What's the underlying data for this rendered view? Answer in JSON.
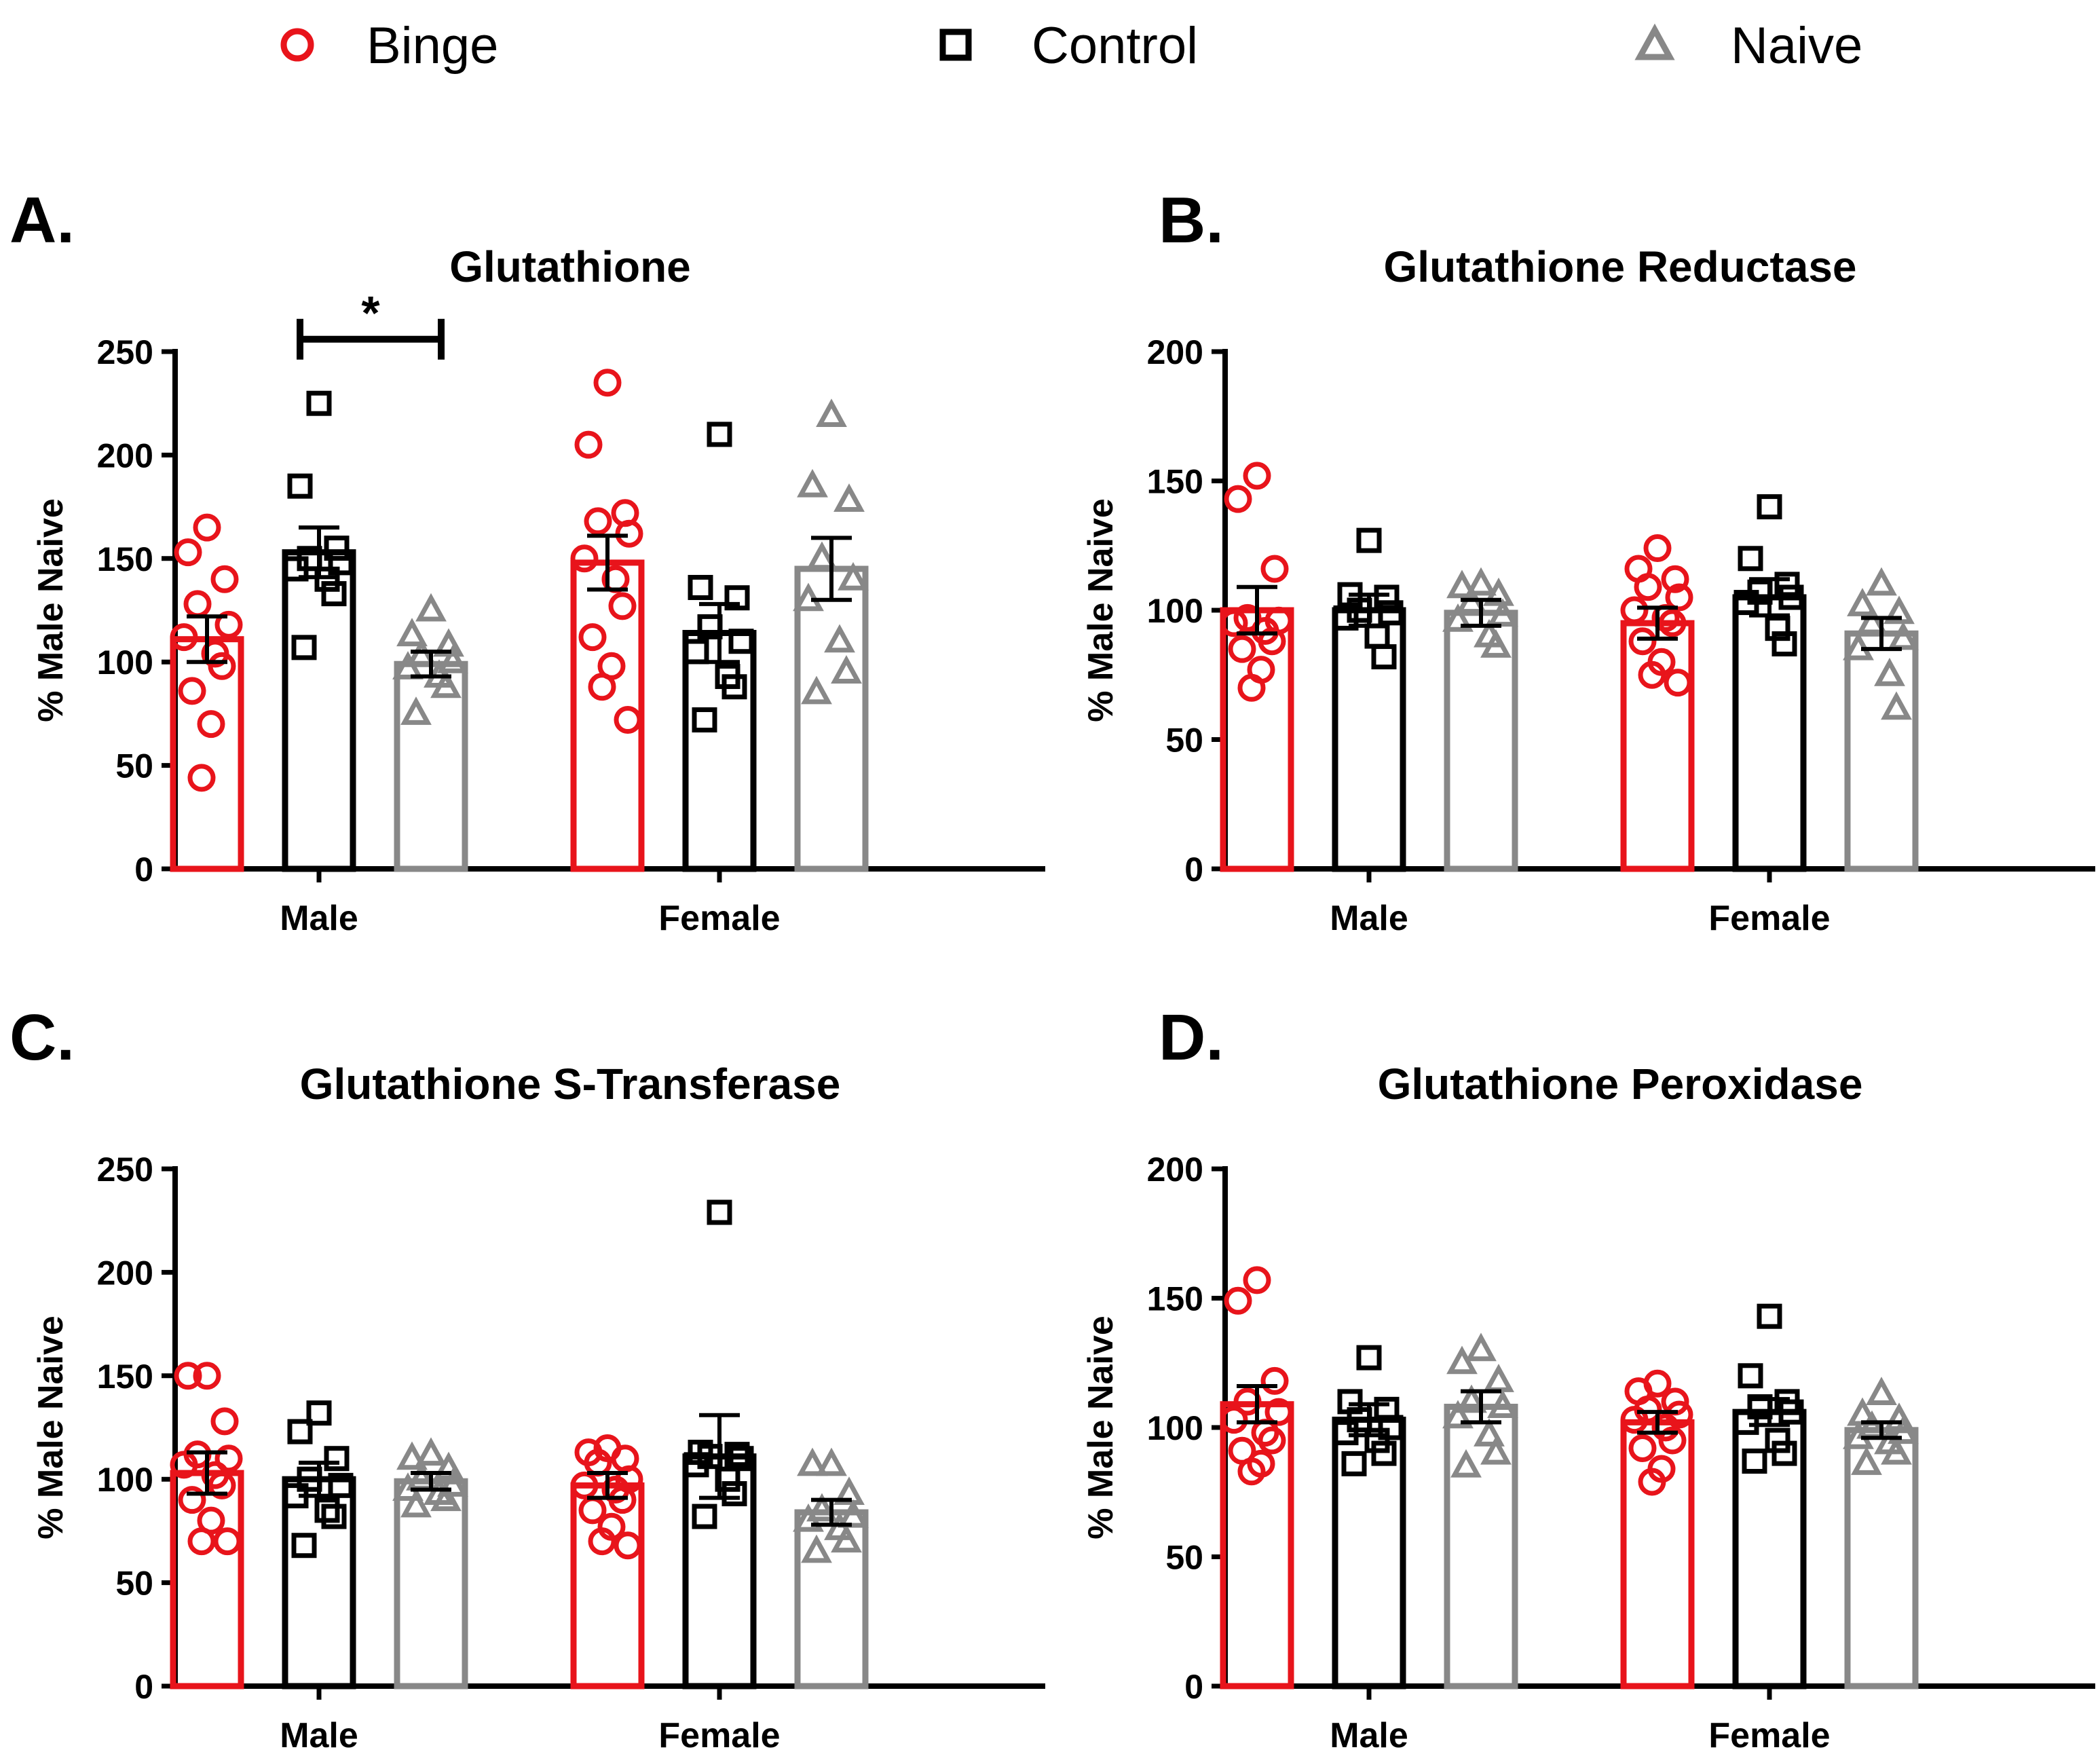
{
  "legend": {
    "items": [
      {
        "label": "Binge",
        "marker": "circle",
        "color": "#e8141b"
      },
      {
        "label": "Control",
        "marker": "square",
        "color": "#000000"
      },
      {
        "label": "Naive",
        "marker": "triangle",
        "color": "#888888"
      }
    ]
  },
  "colors": {
    "binge": "#e8141b",
    "control": "#000000",
    "naive": "#888888",
    "axis": "#000000"
  },
  "chart_data": [
    {
      "panel_label": "A.",
      "type": "bar",
      "title": "Glutathione",
      "ylabel": "% Male Naive",
      "xlabel": "",
      "categories": [
        "Male",
        "Female"
      ],
      "ylim": [
        0,
        250
      ],
      "yticks": [
        0,
        50,
        100,
        150,
        200,
        250
      ],
      "series": [
        {
          "name": "Binge",
          "marker": "circle",
          "means": [
            111,
            148
          ],
          "sem": [
            11,
            13
          ],
          "points": [
            [
              165,
              153,
              140,
              128,
              118,
              112,
              104,
              98,
              86,
              70,
              44
            ],
            [
              235,
              205,
              172,
              168,
              162,
              150,
              140,
              127,
              112,
              98,
              88,
              72
            ]
          ]
        },
        {
          "name": "Control",
          "marker": "square",
          "means": [
            153,
            114
          ],
          "sem": [
            12,
            14
          ],
          "points": [
            [
              225,
              185,
              155,
              150,
              148,
              145,
              140,
              133,
              107
            ],
            [
              210,
              136,
              131,
              117,
              110,
              105,
              93,
              88,
              72
            ]
          ]
        },
        {
          "name": "Naive",
          "marker": "triangle",
          "means": [
            99,
            145
          ],
          "sem": [
            6,
            15
          ],
          "points": [
            [
              125,
              113,
              108,
              103,
              100,
              97,
              93,
              88,
              75
            ],
            [
              219,
              185,
              178,
              150,
              140,
              130,
              110,
              95,
              85
            ]
          ]
        }
      ],
      "significance": [
        {
          "label": "*",
          "between": [
            "Male/Control",
            "Male/Naive"
          ],
          "level": 255
        }
      ]
    },
    {
      "panel_label": "B.",
      "type": "bar",
      "title": "Glutathione Reductase",
      "ylabel": "% Male Naive",
      "xlabel": "",
      "categories": [
        "Male",
        "Female"
      ],
      "ylim": [
        0,
        200
      ],
      "yticks": [
        0,
        50,
        100,
        150,
        200
      ],
      "series": [
        {
          "name": "Binge",
          "marker": "circle",
          "means": [
            100,
            95
          ],
          "sem": [
            9,
            6
          ],
          "points": [
            [
              152,
              143,
              116,
              97,
              96,
              95,
              92,
              88,
              85,
              77,
              70
            ],
            [
              124,
              116,
              112,
              109,
              105,
              100,
              97,
              95,
              88,
              80,
              75,
              72
            ]
          ]
        },
        {
          "name": "Control",
          "marker": "square",
          "means": [
            100,
            105
          ],
          "sem": [
            6,
            7
          ],
          "points": [
            [
              127,
              106,
              105,
              100,
              99,
              97,
              90,
              82
            ],
            [
              140,
              120,
              110,
              107,
              105,
              103,
              93,
              87
            ]
          ]
        },
        {
          "name": "Naive",
          "marker": "triangle",
          "means": [
            99,
            91
          ],
          "sem": [
            5,
            6
          ],
          "points": [
            [
              110,
              109,
              106,
              103,
              98,
              96,
              90,
              86
            ],
            [
              110,
              102,
              99,
              95,
              89,
              85,
              75,
              62
            ]
          ]
        }
      ]
    },
    {
      "panel_label": "C.",
      "type": "bar",
      "title": "Glutathione S-Transferase",
      "ylabel": "% Male Naive",
      "xlabel": "",
      "categories": [
        "Male",
        "Female"
      ],
      "ylim": [
        0,
        250
      ],
      "yticks": [
        0,
        50,
        100,
        150,
        200,
        250
      ],
      "series": [
        {
          "name": "Binge",
          "marker": "circle",
          "means": [
            103,
            97
          ],
          "sem": [
            10,
            6
          ],
          "points": [
            [
              150,
              150,
              128,
              112,
              110,
              107,
              102,
              97,
              90,
              80,
              70,
              70
            ],
            [
              115,
              113,
              110,
              108,
              100,
              97,
              95,
              90,
              85,
              77,
              70,
              68
            ]
          ]
        },
        {
          "name": "Control",
          "marker": "square",
          "means": [
            100,
            111
          ],
          "sem": [
            8,
            20
          ],
          "points": [
            [
              132,
              123,
              110,
              100,
              97,
              92,
              85,
              82,
              68
            ],
            [
              229,
              113,
              112,
              111,
              110,
              107,
              100,
              93,
              82
            ]
          ]
        },
        {
          "name": "Naive",
          "marker": "triangle",
          "means": [
            99,
            84
          ],
          "sem": [
            4,
            6
          ],
          "points": [
            [
              112,
              110,
              105,
              100,
              97,
              95,
              93,
              90,
              87
            ],
            [
              107,
              107,
              93,
              85,
              82,
              80,
              76,
              70,
              65
            ]
          ]
        }
      ]
    },
    {
      "panel_label": "D.",
      "type": "bar",
      "title": "Glutathione Peroxidase",
      "ylabel": "% Male Naive",
      "xlabel": "",
      "categories": [
        "Male",
        "Female"
      ],
      "ylim": [
        0,
        200
      ],
      "yticks": [
        0,
        50,
        100,
        150,
        200
      ],
      "series": [
        {
          "name": "Binge",
          "marker": "circle",
          "means": [
            109,
            102
          ],
          "sem": [
            7,
            4
          ],
          "points": [
            [
              157,
              149,
              118,
              110,
              106,
              103,
              98,
              95,
              91,
              86,
              83
            ],
            [
              117,
              114,
              110,
              107,
              105,
              103,
              100,
              95,
              92,
              84,
              79
            ]
          ]
        },
        {
          "name": "Control",
          "marker": "square",
          "means": [
            103,
            106
          ],
          "sem": [
            6,
            5
          ],
          "points": [
            [
              127,
              110,
              107,
              103,
              100,
              98,
              95,
              90,
              86
            ],
            [
              143,
              120,
              110,
              108,
              106,
              102,
              95,
              90,
              87
            ]
          ]
        },
        {
          "name": "Naive",
          "marker": "triangle",
          "means": [
            108,
            99
          ],
          "sem": [
            6,
            3
          ],
          "points": [
            [
              130,
              125,
              118,
              110,
              108,
              104,
              97,
              90,
              85
            ],
            [
              113,
              105,
              103,
              100,
              98,
              96,
              94,
              90,
              86
            ]
          ]
        }
      ]
    }
  ]
}
